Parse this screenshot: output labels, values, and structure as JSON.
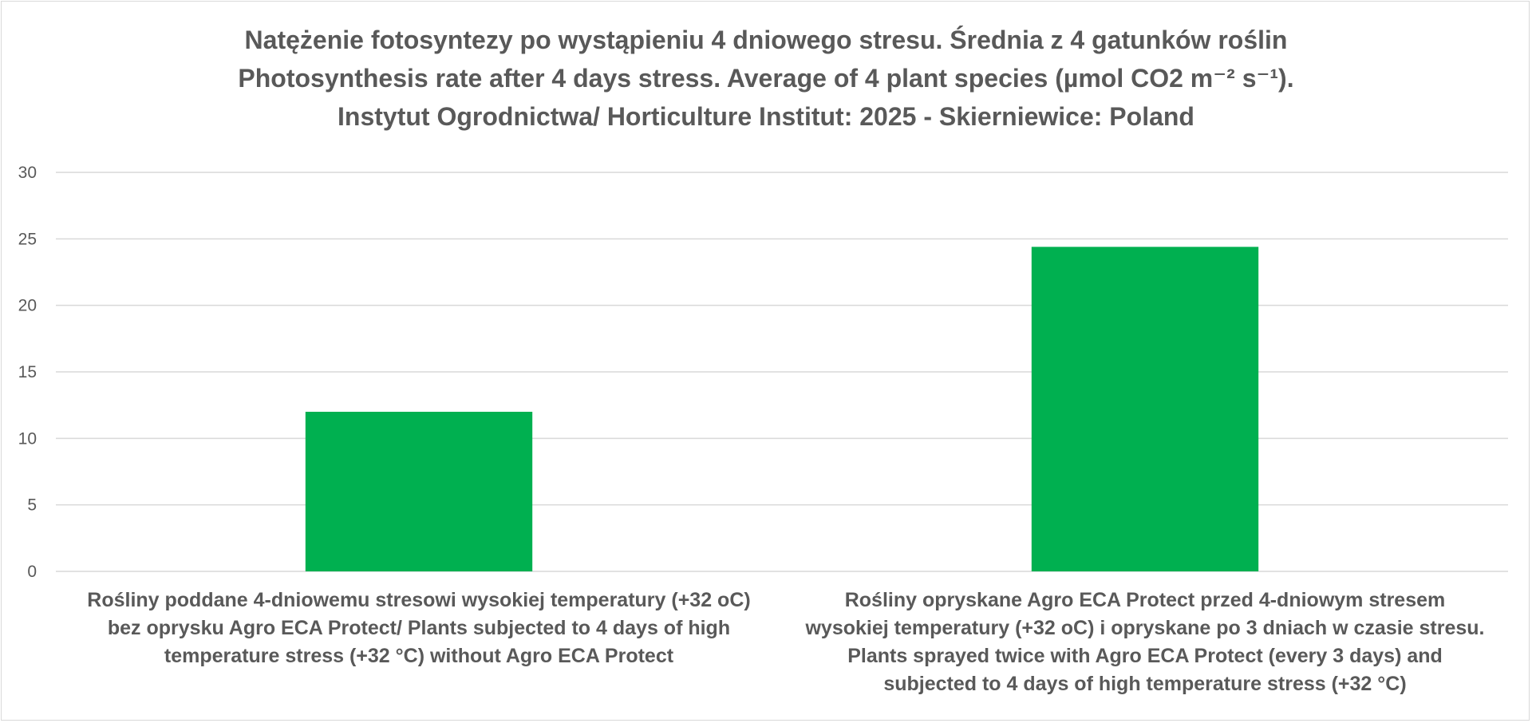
{
  "chart_data": {
    "type": "bar",
    "title": [
      "Natężenie fotosyntezy po wystąpieniu 4 dniowego stresu. Średnia  z 4 gatunków roślin",
      "Photosynthesis rate after 4 days stress. Average of 4 plant species (µmol CO2 m⁻² s⁻¹).",
      "Instytut Ogrodnictwa/ Horticulture Institut: 2025 - Skierniewice: Poland"
    ],
    "categories": [
      [
        "Rośliny poddane 4-dniowemu stresowi wysokiej temperatury (+32 oC)",
        "bez oprysku Agro ECA Protect/ Plants subjected to 4 days of high",
        "temperature stress (+32 °C) without Agro ECA Protect"
      ],
      [
        "Rośliny opryskane  Agro ECA Protect przed  4-dniowym stresem",
        "wysokiej temperatury (+32 oC) i opryskane po 3 dniach w czasie stresu.",
        "Plants sprayed twice with Agro ECA Protect (every 3 days) and",
        "subjected to 4 days of high temperature stress (+32 °C)"
      ]
    ],
    "values": [
      12,
      24.4
    ],
    "ylim": [
      0,
      30
    ],
    "yticks": [
      0,
      5,
      10,
      15,
      20,
      25,
      30
    ],
    "grid": true,
    "legend": "none",
    "bar_color": "#00b050",
    "grid_color": "#d9d9d9",
    "text_color": "#595959"
  }
}
